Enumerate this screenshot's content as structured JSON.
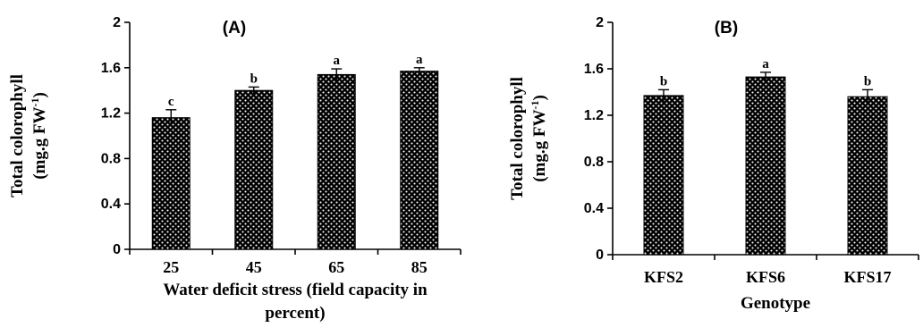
{
  "chart_data": [
    {
      "type": "bar",
      "panel_label": "(A)",
      "ylabel": "Total colorophyll",
      "ylabel_unit_prefix": "(mg.g FW",
      "ylabel_unit_sup": "-1",
      "ylabel_unit_suffix": ")",
      "xlabel_lines": [
        "Water deficit stress (field capacity in",
        "percent)"
      ],
      "ylim": [
        0,
        2
      ],
      "yticks": [
        "0",
        "0.4",
        "0.8",
        "1.2",
        "1.6",
        "2"
      ],
      "categories": [
        "25",
        "45",
        "65",
        "85"
      ],
      "values": [
        1.16,
        1.4,
        1.54,
        1.57
      ],
      "errors": [
        0.07,
        0.03,
        0.05,
        0.03
      ],
      "significance": [
        "c",
        "b",
        "a",
        "a"
      ]
    },
    {
      "type": "bar",
      "panel_label": "(B)",
      "ylabel": "Total colorophyll",
      "ylabel_unit_prefix": "(mg.g FW",
      "ylabel_unit_sup": "-1",
      "ylabel_unit_suffix": ")",
      "xlabel_lines": [
        "Genotype"
      ],
      "ylim": [
        0,
        2
      ],
      "yticks": [
        "0",
        "0.4",
        "0.8",
        "1.2",
        "1.6",
        "2"
      ],
      "categories": [
        "KFS2",
        "KFS6",
        "KFS17"
      ],
      "values": [
        1.37,
        1.53,
        1.36
      ],
      "errors": [
        0.05,
        0.04,
        0.06
      ],
      "significance": [
        "b",
        "a",
        "b"
      ]
    }
  ]
}
